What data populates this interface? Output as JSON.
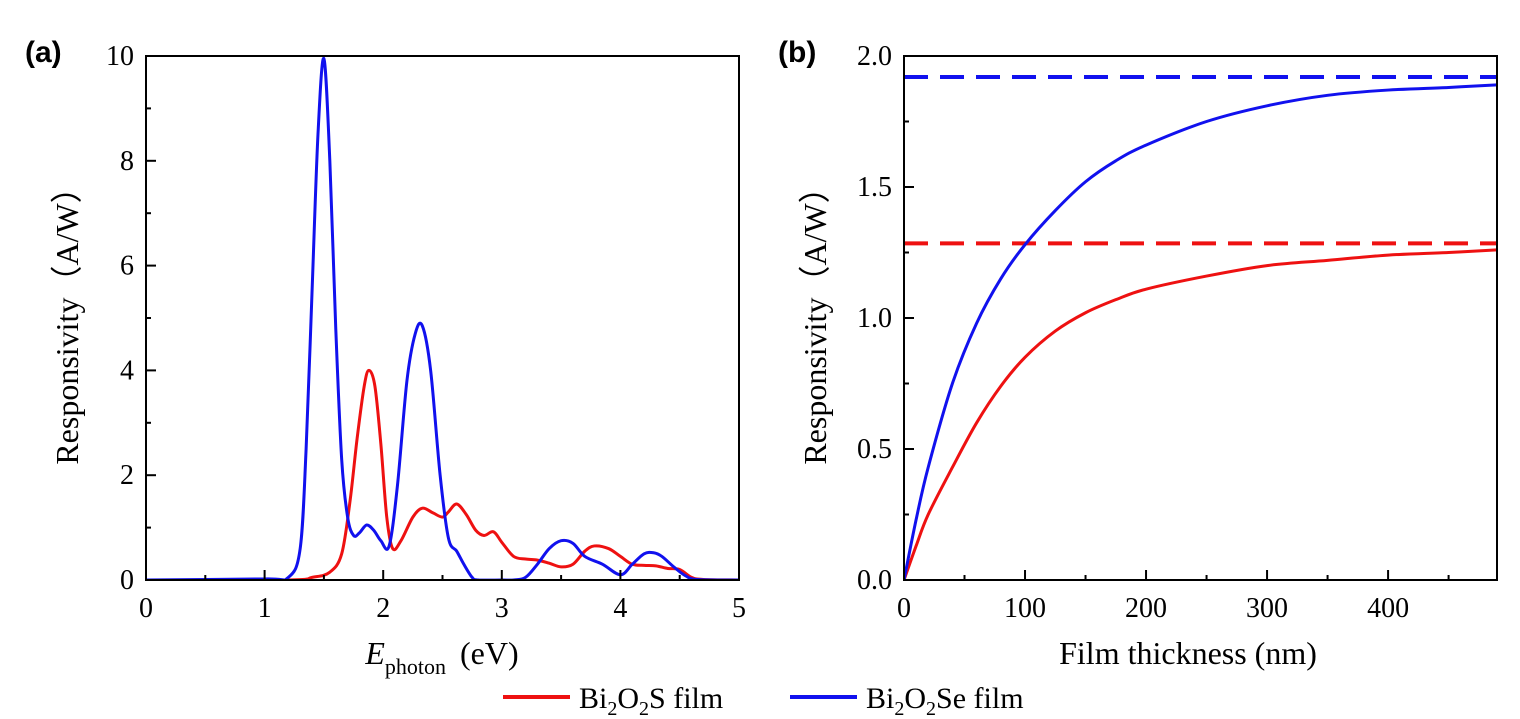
{
  "colors": {
    "bi2o2s": "#ee1111",
    "bi2o2se": "#1111ee",
    "axis": "#000000"
  },
  "legend": {
    "placement": "bottom-center",
    "items": [
      {
        "base": "Bi",
        "sub1": "2",
        "mid": "O",
        "sub2": "2",
        "tail": "S film",
        "color": "#ee1111"
      },
      {
        "base": "Bi",
        "sub1": "2",
        "mid": "O",
        "sub2": "2",
        "tail": "Se film",
        "color": "#1111ee"
      }
    ]
  },
  "chart_data": [
    {
      "panel_label": "(a)",
      "type": "line",
      "xlabel": {
        "italic": "E",
        "sub": "photon",
        "unit": "(eV)"
      },
      "ylabel": "Responsivity（A/W）",
      "xlim": [
        0,
        5
      ],
      "ylim": [
        0,
        10
      ],
      "xticks": [
        "0",
        "1",
        "2",
        "3",
        "4",
        "5"
      ],
      "yticks": [
        "0",
        "2",
        "4",
        "6",
        "8",
        "10"
      ],
      "grid": false,
      "series": [
        {
          "key": "bi2o2s",
          "color": "#ee1111",
          "dashed": false,
          "x": [
            0,
            1.2,
            1.4,
            1.55,
            1.65,
            1.72,
            1.78,
            1.84,
            1.88,
            1.93,
            1.98,
            2.03,
            2.08,
            2.15,
            2.25,
            2.33,
            2.42,
            2.5,
            2.55,
            2.62,
            2.7,
            2.78,
            2.85,
            2.93,
            3.0,
            3.1,
            3.2,
            3.3,
            3.4,
            3.5,
            3.6,
            3.7,
            3.78,
            3.9,
            4.0,
            4.1,
            4.2,
            4.3,
            4.4,
            4.5,
            4.6,
            4.7,
            5.0
          ],
          "y": [
            0,
            0,
            0.05,
            0.15,
            0.5,
            1.5,
            2.7,
            3.7,
            4.0,
            3.7,
            2.6,
            1.2,
            0.6,
            0.75,
            1.2,
            1.37,
            1.28,
            1.2,
            1.3,
            1.45,
            1.25,
            0.95,
            0.85,
            0.92,
            0.72,
            0.45,
            0.4,
            0.38,
            0.32,
            0.25,
            0.3,
            0.55,
            0.65,
            0.6,
            0.45,
            0.3,
            0.28,
            0.27,
            0.22,
            0.2,
            0.05,
            0.01,
            0
          ]
        },
        {
          "key": "bi2o2se",
          "color": "#1111ee",
          "dashed": false,
          "x": [
            0,
            1.0,
            1.2,
            1.3,
            1.35,
            1.4,
            1.45,
            1.5,
            1.55,
            1.6,
            1.65,
            1.7,
            1.75,
            1.8,
            1.86,
            1.92,
            1.98,
            2.05,
            2.12,
            2.2,
            2.27,
            2.33,
            2.4,
            2.48,
            2.55,
            2.62,
            2.68,
            2.75,
            2.8,
            3.0,
            3.1,
            3.2,
            3.3,
            3.4,
            3.5,
            3.6,
            3.7,
            3.85,
            4.0,
            4.1,
            4.2,
            4.28,
            4.35,
            4.45,
            4.55,
            4.65,
            5.0
          ],
          "y": [
            0,
            0.02,
            0.05,
            0.6,
            2.5,
            5.5,
            8.5,
            9.95,
            8.0,
            4.8,
            2.3,
            1.2,
            0.85,
            0.9,
            1.05,
            0.95,
            0.75,
            0.65,
            1.8,
            3.8,
            4.7,
            4.85,
            4.0,
            2.0,
            0.8,
            0.55,
            0.3,
            0.05,
            0,
            0,
            0,
            0.05,
            0.3,
            0.6,
            0.75,
            0.7,
            0.45,
            0.3,
            0.1,
            0.3,
            0.5,
            0.52,
            0.45,
            0.25,
            0.08,
            0.01,
            0
          ]
        }
      ]
    },
    {
      "panel_label": "(b)",
      "type": "line",
      "xlabel": {
        "text": "Film thickness (nm)"
      },
      "ylabel": "Responsivity（A/W）",
      "xlim": [
        0,
        490
      ],
      "ylim": [
        0,
        2.0
      ],
      "xticks": [
        "0",
        "100",
        "200",
        "300",
        "400"
      ],
      "yticks": [
        "0.0",
        "0.5",
        "1.0",
        "1.5",
        "2.0"
      ],
      "grid": false,
      "series": [
        {
          "key": "bi2o2s_limit",
          "color": "#ee1111",
          "dashed": true,
          "x": [
            0,
            490
          ],
          "y": [
            1.285,
            1.285
          ]
        },
        {
          "key": "bi2o2se_limit",
          "color": "#1111ee",
          "dashed": true,
          "x": [
            0,
            490
          ],
          "y": [
            1.92,
            1.92
          ]
        },
        {
          "key": "bi2o2s",
          "color": "#ee1111",
          "dashed": false,
          "x": [
            0,
            10,
            20,
            40,
            60,
            80,
            100,
            125,
            150,
            175,
            200,
            250,
            300,
            350,
            400,
            450,
            490
          ],
          "y": [
            0,
            0.13,
            0.25,
            0.43,
            0.6,
            0.74,
            0.85,
            0.95,
            1.02,
            1.07,
            1.11,
            1.16,
            1.2,
            1.22,
            1.24,
            1.25,
            1.26
          ]
        },
        {
          "key": "bi2o2se",
          "color": "#1111ee",
          "dashed": false,
          "x": [
            0,
            10,
            20,
            40,
            60,
            80,
            100,
            125,
            150,
            175,
            200,
            250,
            300,
            350,
            400,
            450,
            490
          ],
          "y": [
            0,
            0.23,
            0.43,
            0.75,
            0.98,
            1.15,
            1.28,
            1.41,
            1.52,
            1.6,
            1.66,
            1.75,
            1.81,
            1.85,
            1.87,
            1.88,
            1.89
          ]
        }
      ]
    }
  ]
}
